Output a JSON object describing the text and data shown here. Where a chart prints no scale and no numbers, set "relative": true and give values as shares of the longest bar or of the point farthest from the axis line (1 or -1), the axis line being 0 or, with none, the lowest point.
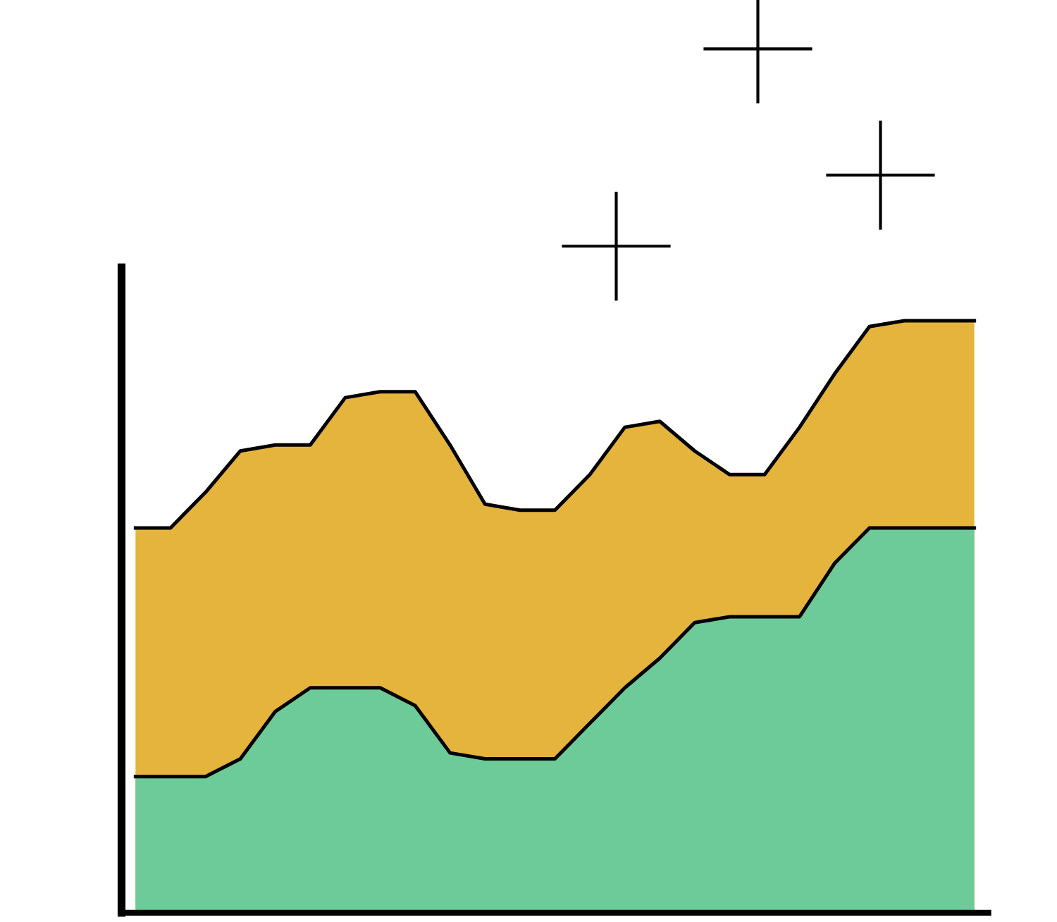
{
  "chart_data": {
    "type": "area",
    "relative": true,
    "legend": false,
    "categories": [
      null,
      null,
      null,
      null,
      null,
      null,
      null,
      null,
      null,
      null,
      null,
      null,
      null,
      null,
      null,
      null,
      null,
      null,
      null,
      null,
      null,
      null,
      null,
      null,
      null
    ],
    "series": [
      {
        "color": "#e5b43c",
        "values": [
          0.65,
          0.65,
          0.71,
          0.78,
          0.79,
          0.79,
          0.87,
          0.88,
          0.88,
          0.79,
          0.69,
          0.68,
          0.68,
          0.74,
          0.82,
          0.83,
          0.78,
          0.74,
          0.74,
          0.82,
          0.91,
          0.99,
          1,
          1,
          1
        ]
      },
      {
        "color": "#6ccb98",
        "values": [
          0.23,
          0.23,
          0.23,
          0.26,
          0.34,
          0.38,
          0.38,
          0.38,
          0.35,
          0.27,
          0.26,
          0.26,
          0.26,
          0.32,
          0.38,
          0.43,
          0.49,
          0.5,
          0.5,
          0.5,
          0.59,
          0.65,
          0.65,
          0.65,
          0.65
        ]
      }
    ]
  }
}
